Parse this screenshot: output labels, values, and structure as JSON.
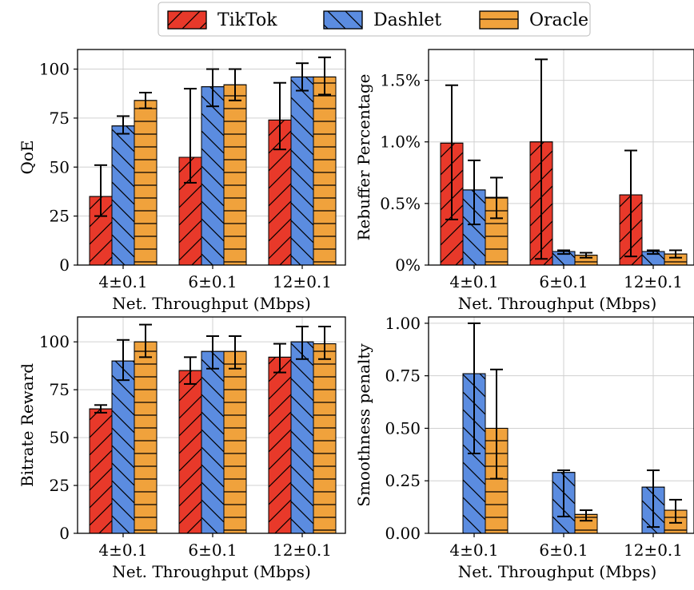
{
  "legend": {
    "entries": [
      {
        "name": "TikTok",
        "color": "#e8392a",
        "hatch": "slash"
      },
      {
        "name": "Dashlet",
        "color": "#5b8ce0",
        "hatch": "backslash"
      },
      {
        "name": "Oracle",
        "color": "#f0a23c",
        "hatch": "horizontal"
      }
    ],
    "placement": "top-center"
  },
  "chart_data": [
    {
      "type": "bar",
      "ylabel": "QoE",
      "xlabel": "Net. Throughput (Mbps)",
      "categories": [
        "4±0.1",
        "6±0.1",
        "12±0.1"
      ],
      "ylim": [
        0,
        110
      ],
      "yticks": [
        0,
        25,
        50,
        75,
        100
      ],
      "ytick_labels": [
        "0",
        "25",
        "50",
        "75",
        "100"
      ],
      "grid": true,
      "series": [
        {
          "name": "TikTok",
          "values": [
            35,
            55,
            74
          ],
          "err_low": [
            25,
            42,
            59
          ],
          "err_high": [
            51,
            90,
            93
          ]
        },
        {
          "name": "Dashlet",
          "values": [
            71,
            91,
            96
          ],
          "err_low": [
            67,
            81,
            89
          ],
          "err_high": [
            76,
            100,
            103
          ]
        },
        {
          "name": "Oracle",
          "values": [
            84,
            92,
            96
          ],
          "err_low": [
            80,
            84,
            87
          ],
          "err_high": [
            88,
            100,
            106
          ]
        }
      ]
    },
    {
      "type": "bar",
      "ylabel": "Rebuffer Percentage",
      "xlabel": "Net. Throughput (Mbps)",
      "categories": [
        "4±0.1",
        "6±0.1",
        "12±0.1"
      ],
      "ylim": [
        0,
        1.75
      ],
      "yticks": [
        0,
        0.5,
        1.0,
        1.5
      ],
      "ytick_labels": [
        "0%",
        "0.5%",
        "1.0%",
        "1.5%"
      ],
      "grid": true,
      "series": [
        {
          "name": "TikTok",
          "values": [
            0.99,
            1.0,
            0.57
          ],
          "err_low": [
            0.37,
            0.05,
            0.07
          ],
          "err_high": [
            1.46,
            1.67,
            0.93
          ]
        },
        {
          "name": "Dashlet",
          "values": [
            0.61,
            0.11,
            0.11
          ],
          "err_low": [
            0.33,
            0.09,
            0.09
          ],
          "err_high": [
            0.85,
            0.12,
            0.12
          ]
        },
        {
          "name": "Oracle",
          "values": [
            0.55,
            0.08,
            0.09
          ],
          "err_low": [
            0.38,
            0.06,
            0.06
          ],
          "err_high": [
            0.71,
            0.1,
            0.12
          ]
        }
      ]
    },
    {
      "type": "bar",
      "ylabel": "Bitrate Reward",
      "xlabel": "Net. Throughput (Mbps)",
      "categories": [
        "4±0.1",
        "6±0.1",
        "12±0.1"
      ],
      "ylim": [
        0,
        113
      ],
      "yticks": [
        0,
        25,
        50,
        75,
        100
      ],
      "ytick_labels": [
        "0",
        "25",
        "50",
        "75",
        "100"
      ],
      "grid": true,
      "series": [
        {
          "name": "TikTok",
          "values": [
            65,
            85,
            92
          ],
          "err_low": [
            63,
            78,
            84
          ],
          "err_high": [
            67,
            92,
            99
          ]
        },
        {
          "name": "Dashlet",
          "values": [
            90,
            95,
            100
          ],
          "err_low": [
            80,
            86,
            91
          ],
          "err_high": [
            101,
            103,
            108
          ]
        },
        {
          "name": "Oracle",
          "values": [
            100,
            95,
            99
          ],
          "err_low": [
            92,
            86,
            91
          ],
          "err_high": [
            109,
            103,
            108
          ]
        }
      ]
    },
    {
      "type": "bar",
      "ylabel": "Smoothness penalty",
      "xlabel": "Net. Throughput (Mbps)",
      "categories": [
        "4±0.1",
        "6±0.1",
        "12±0.1"
      ],
      "ylim": [
        0,
        1.03
      ],
      "yticks": [
        0,
        0.25,
        0.5,
        0.75,
        1.0
      ],
      "ytick_labels": [
        "0.00",
        "0.25",
        "0.50",
        "0.75",
        "1.00"
      ],
      "grid": true,
      "series": [
        {
          "name": "TikTok",
          "values": [
            0,
            0,
            0
          ],
          "err_low": [
            0,
            0,
            0
          ],
          "err_high": [
            0,
            0,
            0
          ]
        },
        {
          "name": "Dashlet",
          "values": [
            0.76,
            0.29,
            0.22
          ],
          "err_low": [
            0.38,
            0.08,
            0.03
          ],
          "err_high": [
            1.0,
            0.3,
            0.3
          ]
        },
        {
          "name": "Oracle",
          "values": [
            0.5,
            0.09,
            0.11
          ],
          "err_low": [
            0.26,
            0.06,
            0.05
          ],
          "err_high": [
            0.78,
            0.11,
            0.16
          ]
        }
      ]
    }
  ]
}
